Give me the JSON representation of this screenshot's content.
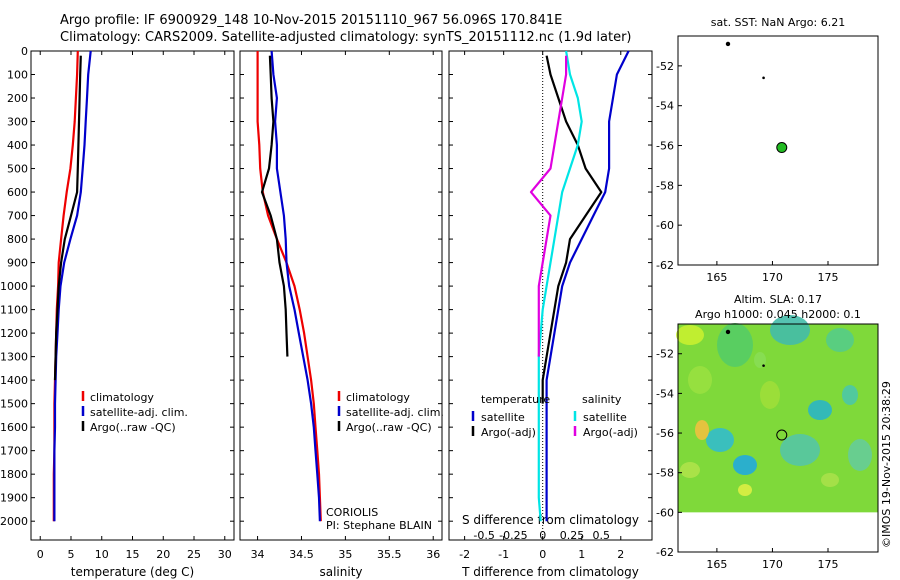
{
  "title": {
    "line1": "Argo profile: IF 6900929_148 10-Nov-2015 20151110_967 56.096S 170.841E",
    "line2": "Climatology: CARS2009. Satellite-adjusted climatology: synTS_20151112.nc (1.9d later)"
  },
  "colors": {
    "climatology": "#ee0000",
    "satellite": "#0000cc",
    "argo": "#000000",
    "sat_salinity": "#00e5e5",
    "argo_salinity": "#e000e0",
    "argo_marker": "#22bb22"
  },
  "depth_ticks": [
    0,
    100,
    200,
    300,
    400,
    500,
    600,
    700,
    800,
    900,
    1000,
    1100,
    1200,
    1300,
    1400,
    1500,
    1600,
    1700,
    1800,
    1900,
    2000
  ],
  "chart_data": [
    {
      "type": "line",
      "xlabel": "temperature (deg C)",
      "ylabel": "",
      "xlim": [
        -1.5,
        31.5
      ],
      "ylim": [
        2080,
        0
      ],
      "xticks": [
        0,
        5,
        10,
        15,
        20,
        25,
        30
      ],
      "legend_position": "bottom-center",
      "series": [
        {
          "name": "climatology",
          "color": "#ee0000",
          "x": [
            6.1,
            6.0,
            5.8,
            5.6,
            5.3,
            4.9,
            4.3,
            3.8,
            3.4,
            3.0,
            2.9,
            2.7,
            2.6,
            2.5,
            2.4,
            2.3,
            2.3,
            2.3,
            2.2,
            2.2,
            2.2
          ],
          "y": [
            0,
            100,
            200,
            300,
            400,
            500,
            600,
            700,
            800,
            900,
            1000,
            1100,
            1200,
            1300,
            1400,
            1500,
            1600,
            1700,
            1800,
            1900,
            2000
          ]
        },
        {
          "name": "satellite-adj. clim.",
          "color": "#0000cc",
          "x": [
            8.2,
            7.8,
            7.6,
            7.4,
            7.2,
            6.9,
            6.6,
            6.0,
            4.9,
            3.9,
            3.3,
            3.0,
            2.8,
            2.6,
            2.5,
            2.4,
            2.4,
            2.3,
            2.3,
            2.3,
            2.3
          ],
          "y": [
            0,
            100,
            200,
            300,
            400,
            500,
            600,
            700,
            800,
            900,
            1000,
            1100,
            1200,
            1300,
            1400,
            1500,
            1600,
            1700,
            1800,
            1900,
            2000
          ]
        },
        {
          "name": "Argo(..raw -QC)",
          "color": "#000000",
          "x": [
            6.6,
            6.5,
            6.4,
            6.3,
            6.2,
            6.1,
            6.0,
            5.0,
            4.0,
            3.4,
            3.0,
            2.8,
            2.6,
            2.5,
            2.4
          ],
          "y": [
            20,
            100,
            200,
            300,
            400,
            500,
            600,
            700,
            800,
            900,
            1000,
            1100,
            1200,
            1300,
            1400
          ]
        }
      ]
    },
    {
      "type": "line",
      "xlabel": "salinity",
      "ylabel": "",
      "xlim": [
        33.8,
        36.1
      ],
      "ylim": [
        2080,
        0
      ],
      "xticks": [
        34,
        34.5,
        35,
        35.5,
        36
      ],
      "legend_position": "bottom-center",
      "annotations": [
        "CORIOLIS",
        "PI: Stephane BLAIN"
      ],
      "series": [
        {
          "name": "climatology",
          "color": "#ee0000",
          "x": [
            34.0,
            34.0,
            34.0,
            34.0,
            34.02,
            34.03,
            34.06,
            34.12,
            34.22,
            34.33,
            34.42,
            34.48,
            34.53,
            34.57,
            34.61,
            34.64,
            34.66,
            34.68,
            34.7,
            34.71,
            34.72
          ],
          "y": [
            0,
            100,
            200,
            300,
            400,
            500,
            600,
            700,
            800,
            900,
            1000,
            1100,
            1200,
            1300,
            1400,
            1500,
            1600,
            1700,
            1800,
            1900,
            2000
          ]
        },
        {
          "name": "satellite-adj. clim.",
          "color": "#0000cc",
          "x": [
            34.16,
            34.18,
            34.22,
            34.2,
            34.22,
            34.22,
            34.26,
            34.3,
            34.32,
            34.33,
            34.36,
            34.42,
            34.47,
            34.52,
            34.57,
            34.61,
            34.64,
            34.66,
            34.68,
            34.7,
            34.71
          ],
          "y": [
            0,
            100,
            200,
            300,
            400,
            500,
            600,
            700,
            800,
            900,
            1000,
            1100,
            1200,
            1300,
            1400,
            1500,
            1600,
            1700,
            1800,
            1900,
            2000
          ]
        },
        {
          "name": "Argo(..raw -QC)",
          "color": "#000000",
          "x": [
            34.14,
            34.15,
            34.16,
            34.18,
            34.16,
            34.13,
            34.05,
            34.15,
            34.22,
            34.25,
            34.3,
            34.32,
            34.33,
            34.34
          ],
          "y": [
            20,
            100,
            200,
            300,
            400,
            500,
            600,
            700,
            800,
            900,
            1000,
            1100,
            1200,
            1300
          ]
        }
      ]
    },
    {
      "type": "line",
      "xlabel": "T difference from climatology",
      "x2label": "S difference from climatology",
      "ylabel": "",
      "xlim": [
        -2.4,
        2.8
      ],
      "ylim": [
        2080,
        0
      ],
      "xticks": [
        -2,
        -1,
        0,
        1,
        2
      ],
      "x2ticks": [
        "-0.5",
        "-0.25",
        "0",
        "0.25",
        "0.5"
      ],
      "legend_position": "bottom-center",
      "legend_headers": [
        "temperature",
        "salinity"
      ],
      "series": [
        {
          "name": "satellite",
          "group": "temperature",
          "color": "#0000cc",
          "x": [
            2.2,
            1.9,
            1.8,
            1.7,
            1.7,
            1.7,
            1.6,
            1.3,
            1.0,
            0.7,
            0.5,
            0.4,
            0.3,
            0.2,
            0.1,
            0.1,
            0.1,
            0.1,
            0.1,
            0.1,
            0.1
          ],
          "y": [
            0,
            100,
            200,
            300,
            400,
            500,
            600,
            700,
            800,
            900,
            1000,
            1100,
            1200,
            1300,
            1400,
            1500,
            1600,
            1700,
            1800,
            1900,
            2000
          ]
        },
        {
          "name": "Argo(-adj)",
          "group": "temperature",
          "color": "#000000",
          "x": [
            0.1,
            0.2,
            0.4,
            0.6,
            0.9,
            1.1,
            1.5,
            1.1,
            0.7,
            0.6,
            0.4,
            0.3,
            0.2,
            0.1,
            0.0,
            0.0
          ],
          "y": [
            20,
            100,
            200,
            300,
            400,
            500,
            600,
            700,
            800,
            900,
            1000,
            1100,
            1200,
            1300,
            1400,
            1500
          ]
        },
        {
          "name": "satellite",
          "group": "salinity",
          "color": "#00e5e5",
          "x": [
            0.6,
            0.7,
            0.9,
            1.0,
            0.9,
            0.7,
            0.5,
            0.4,
            0.3,
            0.2,
            0.1,
            0.0,
            -0.05,
            -0.1,
            -0.1,
            -0.1,
            -0.1,
            -0.1,
            -0.1,
            -0.1,
            -0.05
          ],
          "y": [
            0,
            100,
            200,
            300,
            400,
            500,
            600,
            700,
            800,
            900,
            1000,
            1100,
            1200,
            1300,
            1400,
            1500,
            1600,
            1700,
            1800,
            1900,
            2000
          ]
        },
        {
          "name": "Argo(-adj)",
          "group": "salinity",
          "color": "#e000e0",
          "x": [
            0.6,
            0.6,
            0.5,
            0.4,
            0.3,
            0.2,
            -0.3,
            0.2,
            0.1,
            0.0,
            -0.1,
            -0.1,
            -0.1,
            -0.1
          ],
          "y": [
            20,
            100,
            200,
            300,
            400,
            500,
            600,
            700,
            800,
            900,
            1000,
            1100,
            1200,
            1300
          ]
        }
      ]
    },
    {
      "type": "scatter",
      "title": "sat. SST: NaN Argo: 6.21",
      "xlim": [
        161.5,
        179.5
      ],
      "ylim": [
        -62,
        -50.5
      ],
      "xticks": [
        165,
        170,
        175
      ],
      "yticks": [
        -52,
        -54,
        -56,
        -58,
        -60,
        -62
      ],
      "series": [
        {
          "name": "",
          "color": "#000000",
          "x": [
            166.0,
            169.2
          ],
          "y": [
            -50.9,
            -52.6
          ]
        },
        {
          "name": "",
          "color": "#22bb22",
          "x": [
            170.84
          ],
          "y": [
            -56.1
          ]
        }
      ]
    },
    {
      "type": "heatmap",
      "title": "Altim. SLA: 0.17",
      "subtitle": "Argo h1000: 0.045 h2000: 0.1",
      "xlim": [
        161.5,
        179.5
      ],
      "ylim": [
        -62,
        -50.5
      ],
      "xticks": [
        165,
        170,
        175
      ],
      "yticks": [
        -52,
        -54,
        -56,
        -58,
        -60,
        -62
      ],
      "series": [
        {
          "name": "",
          "color": "#000000",
          "x": [
            166.0,
            169.2,
            170.84
          ],
          "y": [
            -50.9,
            -52.6,
            -56.1
          ]
        }
      ]
    }
  ],
  "credit": "©IMOS 19-Nov-2015 20:38:29"
}
